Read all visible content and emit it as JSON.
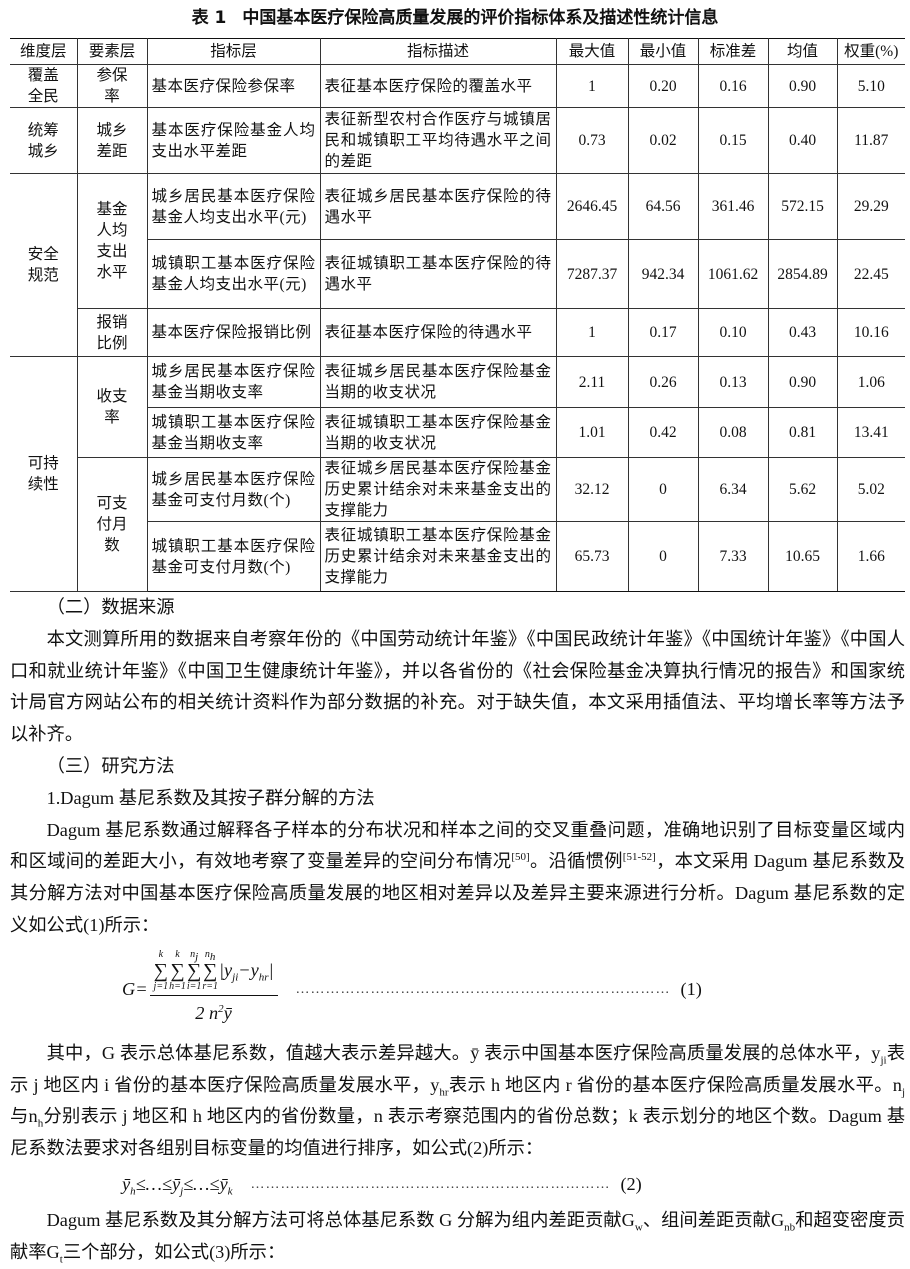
{
  "table": {
    "label": "表 1",
    "title": "中国基本医疗保险高质量发展的评价指标体系及描述性统计信息",
    "header": [
      "维度层",
      "要素层",
      "指标层",
      "指标描述",
      "最大值",
      "最小值",
      "标准差",
      "均值",
      "权重(%)"
    ],
    "rows": [
      [
        "覆盖全民",
        "参保率",
        "基本医疗保险参保率",
        "表征基本医疗保险的覆盖水平",
        "1",
        "0.20",
        "0.16",
        "0.90",
        "5.10"
      ],
      [
        "统筹城乡",
        "城乡差距",
        "基本医疗保险基金人均支出水平差距",
        "表征新型农村合作医疗与城镇居民和城镇职工平均待遇水平之间的差距",
        "0.73",
        "0.02",
        "0.15",
        "0.40",
        "11.87"
      ],
      [
        "安全规范",
        "基金人均支出水平",
        "城乡居民基本医疗保险基金人均支出水平(元)",
        "表征城乡居民基本医疗保险的待遇水平",
        "2646.45",
        "64.56",
        "361.46",
        "572.15",
        "29.29"
      ],
      [
        "城镇职工基本医疗保险基金人均支出水平(元)",
        "表征城镇职工基本医疗保险的待遇水平",
        "7287.37",
        "942.34",
        "1061.62",
        "2854.89",
        "22.45"
      ],
      [
        "报销比例",
        "基本医疗保险报销比例",
        "表征基本医疗保险的待遇水平",
        "1",
        "0.17",
        "0.10",
        "0.43",
        "10.16"
      ],
      [
        "可持续性",
        "收支率",
        "城乡居民基本医疗保险基金当期收支率",
        "表征城乡居民基本医疗保险基金当期的收支状况",
        "2.11",
        "0.26",
        "0.13",
        "0.90",
        "1.06"
      ],
      [
        "城镇职工基本医疗保险基金当期收支率",
        "表征城镇职工基本医疗保险基金当期的收支状况",
        "1.01",
        "0.42",
        "0.08",
        "0.81",
        "13.41"
      ],
      [
        "可支付月数",
        "城乡居民基本医疗保险基金可支付月数(个)",
        "表征城乡居民基本医疗保险基金历史累计结余对未来基金支出的支撑能力",
        "32.12",
        "0",
        "6.34",
        "5.62",
        "5.02"
      ],
      [
        "城镇职工基本医疗保险基金可支付月数(个)",
        "表征城镇职工基本医疗保险基金历史累计结余对未来基金支出的支撑能力",
        "65.73",
        "0",
        "7.33",
        "10.65",
        "1.66"
      ]
    ]
  },
  "sections": [
    {
      "type": "heading",
      "runs": [
        "（二）数据来源"
      ]
    },
    {
      "type": "para",
      "runs": [
        "本文测算所用的数据来自考察年份的《中国劳动统计年鉴》《中国民政统计年鉴》《中国统计年鉴》《中国人口和就业统计年鉴》《中国卫生健康统计年鉴》，并以各省份的《社会保险基金决算执行情况的报告》和国家统计局官方网站公布的相关统计资料作为部分数据的补充。对于缺失值，本文采用插值法、平均增长率等方法予以补齐。"
      ]
    },
    {
      "type": "heading",
      "runs": [
        "（三）研究方法"
      ]
    },
    {
      "type": "heading",
      "runs": [
        "1.Dagum 基尼系数及其按子群分解的方法"
      ]
    },
    {
      "type": "para",
      "runs": [
        "Dagum 基尼系数通过解释各子样本的分布状况和样本之间的交叉重叠问题，准确地识别了目标变量区域内和区域间的差距大小，有效地考察了变量差异的空间分布情况",
        {
          "sup": "[50]"
        },
        "。沿循惯例",
        {
          "sup": "[51-52]"
        },
        "，本文采用 Dagum 基尼系数及其分解方法对中国基本医疗保险高质量发展的地区相对差异以及差异主要来源进行分析。Dagum 基尼系数的定义如公式(1)所示："
      ]
    },
    {
      "type": "fraction",
      "lhs": "G=",
      "sums": [
        {
          "symbol": "∑",
          "upper": [
            "k"
          ],
          "lower": [
            "j=1"
          ]
        },
        {
          "symbol": "∑",
          "upper": [
            "k"
          ],
          "lower": [
            "h=1"
          ]
        },
        {
          "symbol": "∑",
          "upper": [
            "n",
            {
              "sub": "j"
            }
          ],
          "lower": [
            "i=1"
          ]
        },
        {
          "symbol": "∑",
          "upper": [
            "n",
            {
              "sub": "h"
            }
          ],
          "lower": [
            "r=1"
          ]
        }
      ],
      "body": [
        "|y",
        {
          "sub": "ji"
        },
        "−y",
        {
          "sub": "hr"
        },
        "|"
      ],
      "denominator": [
        "2 n",
        {
          "sup": "2"
        },
        "ȳ"
      ],
      "leader": "…………………………………………………………………",
      "number": "(1)"
    },
    {
      "type": "para",
      "runs": [
        "其中，G 表示总体基尼系数，值越大表示差异越大。ȳ 表示中国基本医疗保险高质量发展的总体水平，y",
        {
          "sub": "ji"
        },
        "表示 j 地区内 i 省份的基本医疗保险高质量发展水平，y",
        {
          "sub": "hr"
        },
        "表示 h 地区内 r 省份的基本医疗保险高质量发展水平。n",
        {
          "sub": "j"
        },
        "与n",
        {
          "sub": "h"
        },
        "分别表示 j 地区和 h 地区内的省份数量，n 表示考察范围内的省份总数；k 表示划分的地区个数。Dagum 基尼系数法要求对各组别目标变量的均值进行排序，如公式(2)所示："
      ]
    },
    {
      "type": "inline-formula",
      "runs": [
        "ȳ",
        {
          "sub": "h"
        },
        "≤…≤ȳ",
        {
          "sub": "j"
        },
        "≤…≤ȳ",
        {
          "sub": "k"
        }
      ],
      "leader": "………………………………………………………………",
      "number": "(2)"
    },
    {
      "type": "para",
      "runs": [
        "Dagum 基尼系数及其分解方法可将总体基尼系数 G 分解为组内差距贡献G",
        {
          "sub": "w"
        },
        "、组间差距贡献G",
        {
          "sub": "nb"
        },
        "和超变密度贡献率G",
        {
          "sub": "t"
        },
        "三个部分，如公式(3)所示："
      ]
    }
  ]
}
